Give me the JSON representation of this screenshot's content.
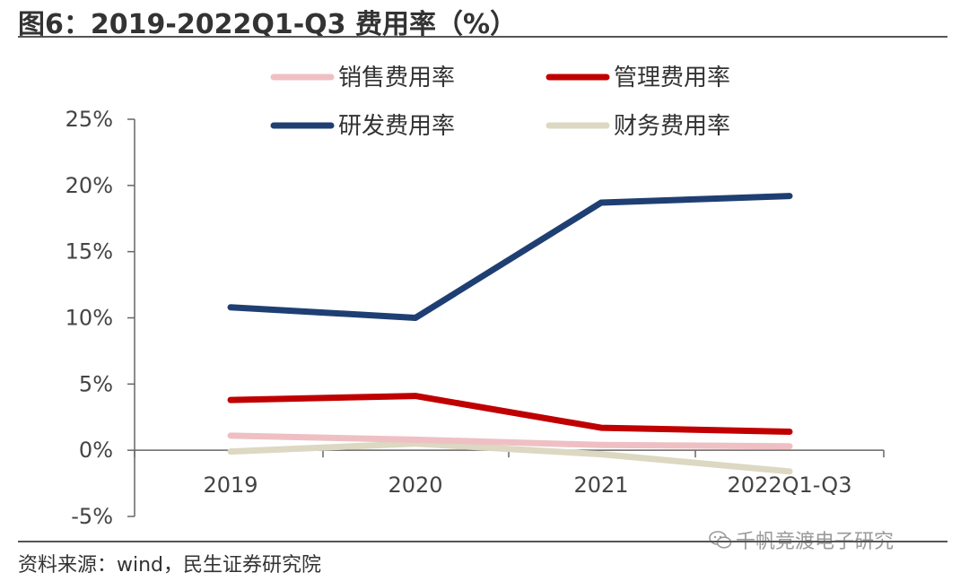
{
  "header": {
    "title": "图6：2019-2022Q1-Q3 费用率（%）"
  },
  "footer": {
    "source": "资料来源：wind，民生证券研究院",
    "watermark": "千帆竞渡电子研究"
  },
  "icons": {
    "watermark_icon": "wechat-icon"
  },
  "chart_data": {
    "type": "line",
    "title": "2019-2022Q1-Q3 费用率（%）",
    "xlabel": "",
    "ylabel": "",
    "categories": [
      "2019",
      "2020",
      "2021",
      "2022Q1-Q3"
    ],
    "ylim": [
      -5,
      25
    ],
    "yticks": [
      25,
      20,
      15,
      10,
      5,
      0,
      -5
    ],
    "ytick_labels": [
      "25%",
      "20%",
      "15%",
      "10%",
      "5%",
      "0%",
      "-5%"
    ],
    "grid": false,
    "legend_position": "top",
    "series": [
      {
        "name": "销售费用率",
        "color": "#efc0c3",
        "values": [
          1.1,
          0.8,
          0.4,
          0.3
        ]
      },
      {
        "name": "管理费用率",
        "color": "#c00000",
        "values": [
          3.8,
          4.1,
          1.7,
          1.4
        ]
      },
      {
        "name": "研发费用率",
        "color": "#1f3f73",
        "values": [
          10.8,
          10.0,
          18.7,
          19.2
        ]
      },
      {
        "name": "财务费用率",
        "color": "#dcd8c2",
        "values": [
          -0.1,
          0.5,
          -0.3,
          -1.6
        ]
      }
    ]
  }
}
